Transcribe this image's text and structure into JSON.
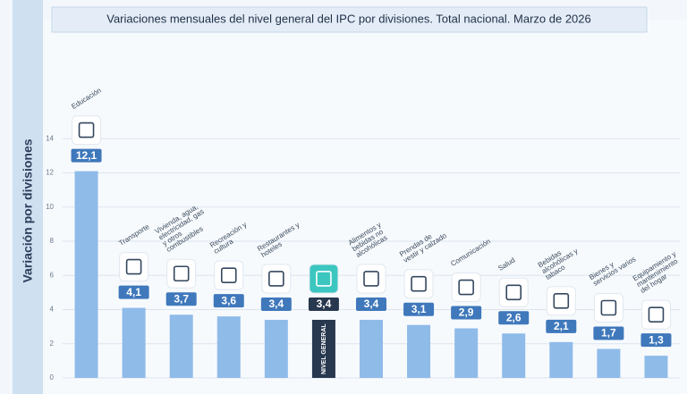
{
  "chart_data": {
    "type": "bar",
    "title": "Variaciones mensuales del nivel general del IPC por divisiones. Total nacional. Marzo de 2026",
    "y_label": "Variación por divisiones",
    "categories": [
      "Educación",
      "Transporte",
      "Vivienda, agua, electricidad, gas y otros combustibles",
      "Recreación y cultura",
      "Restaurantes y hoteles",
      "NIVEL GENERAL",
      "Alimentos y bebidas no alcohólicas",
      "Prendas de vestir y calzado",
      "Comunicación",
      "Salud",
      "Bebidas alcohólicas y tabaco",
      "Bienes y servicios varios",
      "Equipamiento y mantenimiento del hogar"
    ],
    "values": [
      12.1,
      4.1,
      3.7,
      3.6,
      3.4,
      3.4,
      3.4,
      3.1,
      2.9,
      2.6,
      2.1,
      1.7,
      1.3
    ],
    "value_labels": [
      "12,1",
      "4,1",
      "3,7",
      "3,6",
      "3,4",
      "3,4",
      "3,4",
      "3,1",
      "2,9",
      "2,6",
      "2,1",
      "1,7",
      "1,3"
    ],
    "colors": [
      "#8fbbe9",
      "#8fbbe9",
      "#8fbbe9",
      "#8fbbe9",
      "#8fbbe9",
      "#27384f",
      "#8fbbe9",
      "#8fbbe9",
      "#8fbbe9",
      "#8fbbe9",
      "#8fbbe9",
      "#8fbbe9",
      "#8fbbe9"
    ],
    "ylim": [
      0,
      16
    ],
    "yticks": [
      0,
      2,
      4,
      6,
      8,
      10,
      12,
      14
    ],
    "grid": true
  }
}
